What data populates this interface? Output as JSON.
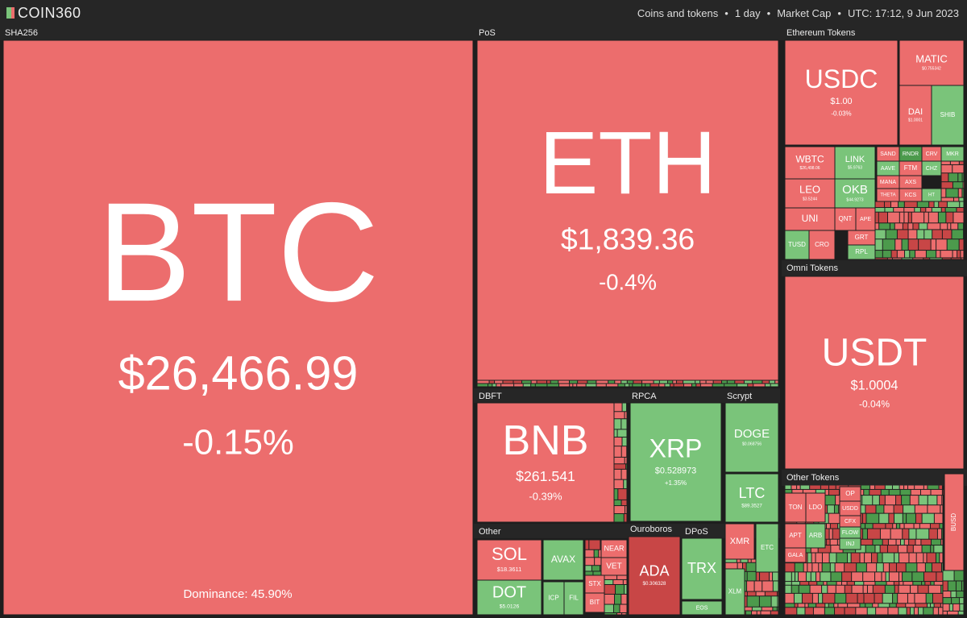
{
  "header": {
    "logo": "COIN360",
    "info": [
      "Coins and tokens",
      "1 day",
      "Market Cap",
      "UTC: 17:12, 9 Jun 2023"
    ]
  },
  "dominance": "Dominance: 45.90%",
  "groups": [
    {
      "label": "SHA256",
      "tiles": [
        {
          "symbol": "BTC",
          "price": "$26,466.99",
          "change": "-0.15%"
        }
      ]
    },
    {
      "label": "PoS",
      "tiles": [
        {
          "symbol": "ETH",
          "price": "$1,839.36",
          "change": "-0.4%"
        }
      ]
    },
    {
      "label": "Ethereum Tokens",
      "tiles": [
        {
          "symbol": "USDC",
          "price": "$1.00",
          "change": "-0.03%"
        },
        {
          "symbol": "MATIC",
          "price": "$0.755342"
        },
        {
          "symbol": "DAI",
          "price": "$1.0001"
        },
        {
          "symbol": "SHIB"
        },
        {
          "symbol": "WBTC",
          "price": "$26,498.06"
        },
        {
          "symbol": "LINK",
          "price": "$5.9763"
        },
        {
          "symbol": "LEO",
          "price": "$3.5244"
        },
        {
          "symbol": "OKB",
          "price": "$44.9273"
        },
        {
          "symbol": "UNI"
        },
        {
          "symbol": "QNT"
        },
        {
          "symbol": "APE"
        },
        {
          "symbol": "TUSD"
        },
        {
          "symbol": "CRO"
        },
        {
          "symbol": "GRT"
        },
        {
          "symbol": "RPL"
        },
        {
          "symbol": "SAND"
        },
        {
          "symbol": "RNDR"
        },
        {
          "symbol": "CRV"
        },
        {
          "symbol": "MKR"
        },
        {
          "symbol": "AAVE"
        },
        {
          "symbol": "FTM"
        },
        {
          "symbol": "CHZ"
        },
        {
          "symbol": "MANA"
        },
        {
          "symbol": "AXS"
        },
        {
          "symbol": "THETA"
        },
        {
          "symbol": "KCS"
        },
        {
          "symbol": "HT"
        }
      ]
    },
    {
      "label": "Omni Tokens",
      "tiles": [
        {
          "symbol": "USDT",
          "price": "$1.0004",
          "change": "-0.04%"
        }
      ]
    },
    {
      "label": "Other Tokens",
      "tiles": [
        {
          "symbol": "TON"
        },
        {
          "symbol": "LDO"
        },
        {
          "symbol": "OP"
        },
        {
          "symbol": "USDD"
        },
        {
          "symbol": "CFX"
        },
        {
          "symbol": "FLOW"
        },
        {
          "symbol": "INJ"
        },
        {
          "symbol": "APT"
        },
        {
          "symbol": "ARB"
        },
        {
          "symbol": "GALA"
        },
        {
          "symbol": "BUSD"
        }
      ]
    },
    {
      "label": "DBFT",
      "tiles": [
        {
          "symbol": "BNB",
          "price": "$261.541",
          "change": "-0.39%"
        }
      ]
    },
    {
      "label": "RPCA",
      "tiles": [
        {
          "symbol": "XRP",
          "price": "$0.528973",
          "change": "+1.35%"
        }
      ]
    },
    {
      "label": "Scrypt",
      "tiles": [
        {
          "symbol": "DOGE",
          "price": "$0.068756"
        },
        {
          "symbol": "LTC",
          "price": "$89.3527"
        }
      ]
    },
    {
      "label": "Other",
      "tiles": [
        {
          "symbol": "SOL",
          "price": "$18.3611"
        },
        {
          "symbol": "DOT",
          "price": "$5.0126"
        },
        {
          "symbol": "AVAX"
        },
        {
          "symbol": "ICP"
        },
        {
          "symbol": "FIL"
        },
        {
          "symbol": "NEAR"
        },
        {
          "symbol": "VET"
        },
        {
          "symbol": "STX"
        },
        {
          "symbol": "BIT"
        }
      ]
    },
    {
      "label": "Ouroboros",
      "tiles": [
        {
          "symbol": "ADA",
          "price": "$0.306328"
        }
      ]
    },
    {
      "label": "DPoS",
      "tiles": [
        {
          "symbol": "TRX"
        },
        {
          "symbol": "EOS"
        }
      ]
    },
    {
      "tiles": [
        {
          "symbol": "XMR"
        },
        {
          "symbol": "ETC"
        },
        {
          "symbol": "XLM"
        }
      ]
    }
  ]
}
